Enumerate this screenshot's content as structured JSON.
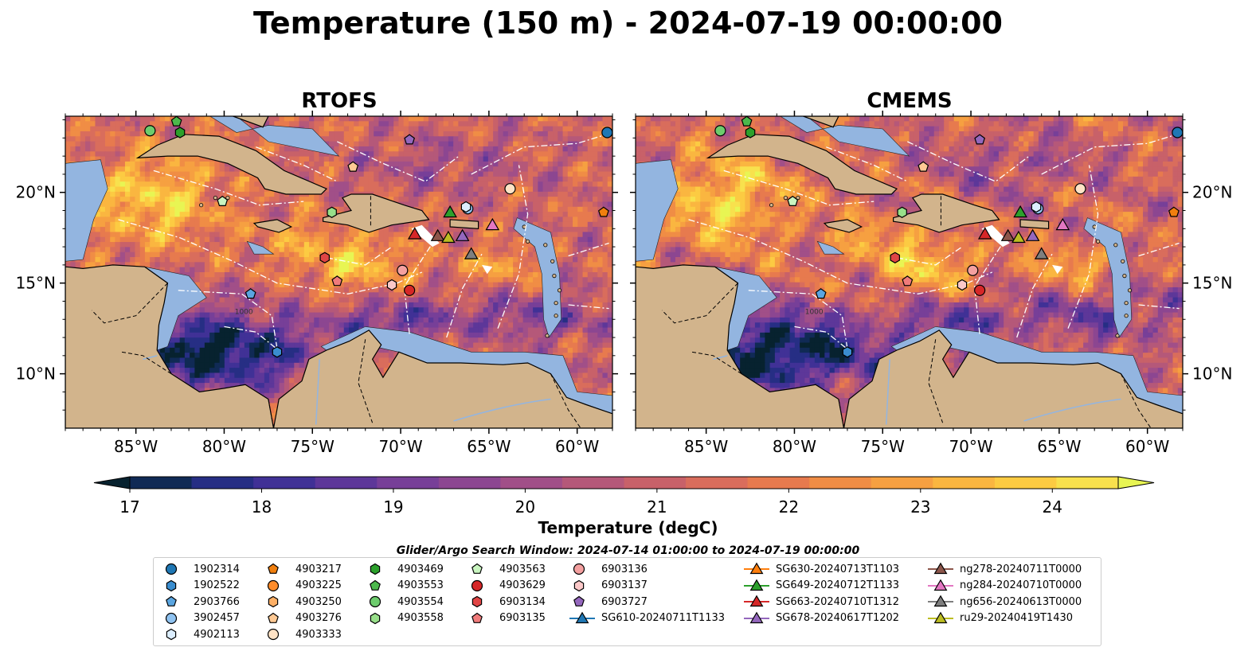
{
  "title": "Temperature (150 m) - 2024-07-19 00:00:00",
  "panels": [
    "RTOFS",
    "CMEMS"
  ],
  "colorbar": {
    "label": "Temperature (degC)",
    "ticks": [
      "17",
      "18",
      "19",
      "20",
      "21",
      "22",
      "23",
      "24"
    ],
    "range": [
      17,
      24.5
    ],
    "colors": [
      "#07222f",
      "#102a55",
      "#262e84",
      "#403196",
      "#5d3799",
      "#773f98",
      "#8c4691",
      "#a14f88",
      "#b55879",
      "#c86169",
      "#d96d5c",
      "#e77a4e",
      "#f08d45",
      "#f6a041",
      "#fab640",
      "#fccb42",
      "#f8e14d",
      "#e8f553"
    ]
  },
  "map": {
    "lon_labels": [
      "85°W",
      "80°W",
      "75°W",
      "70°W",
      "65°W",
      "60°W"
    ],
    "lat_labels": [
      "20°N",
      "15°N",
      "10°N"
    ],
    "contour_label": "1000",
    "land_color": "#d2b48c",
    "shelf_color": "#93b5e0"
  },
  "search_window": "Glider/Argo Search Window: 2024-07-14 01:00:00 to 2024-07-19 00:00:00",
  "legend": [
    {
      "label": "1902314",
      "marker": "circle",
      "color": "#1f77b4"
    },
    {
      "label": "1902522",
      "marker": "hexagon",
      "color": "#3a8dcf"
    },
    {
      "label": "2903766",
      "marker": "pentagon",
      "color": "#5aa5e0"
    },
    {
      "label": "3902457",
      "marker": "circle",
      "color": "#8fc2f0"
    },
    {
      "label": "4902113",
      "marker": "hexagon",
      "color": "#dceeff"
    },
    {
      "label": "4903217",
      "marker": "pentagon",
      "color": "#f07f0e"
    },
    {
      "label": "4903225",
      "marker": "circle",
      "color": "#ff8c2a"
    },
    {
      "label": "4903250",
      "marker": "hexagon",
      "color": "#ffb066"
    },
    {
      "label": "4903276",
      "marker": "pentagon",
      "color": "#ffc994"
    },
    {
      "label": "4903333",
      "marker": "circle",
      "color": "#ffe3c6"
    },
    {
      "label": "4903469",
      "marker": "hexagon",
      "color": "#2ca02c"
    },
    {
      "label": "4903553",
      "marker": "pentagon",
      "color": "#4cb84c"
    },
    {
      "label": "4903554",
      "marker": "circle",
      "color": "#6dcc6d"
    },
    {
      "label": "4903558",
      "marker": "hexagon",
      "color": "#98df8a"
    },
    {
      "label": "4903563",
      "marker": "pentagon",
      "color": "#c9f5c0"
    },
    {
      "label": "4903629",
      "marker": "circle",
      "color": "#d62728"
    },
    {
      "label": "6903134",
      "marker": "hexagon",
      "color": "#e04545"
    },
    {
      "label": "6903135",
      "marker": "pentagon",
      "color": "#f07b7b"
    },
    {
      "label": "6903136",
      "marker": "circle",
      "color": "#f4a0a0"
    },
    {
      "label": "6903137",
      "marker": "hexagon",
      "color": "#fbc8c8"
    },
    {
      "label": "6903727",
      "marker": "pentagon",
      "color": "#9467bd"
    },
    {
      "label": "SG610-20240711T1133",
      "marker": "triangle",
      "color": "#1f77b4"
    },
    {
      "label": "SG630-20240713T1103",
      "marker": "triangle",
      "color": "#ff7f0e"
    },
    {
      "label": "SG649-20240712T1133",
      "marker": "triangle",
      "color": "#2ca02c"
    },
    {
      "label": "SG663-20240710T1312",
      "marker": "triangle",
      "color": "#d62728"
    },
    {
      "label": "SG678-20240617T1202",
      "marker": "triangle",
      "color": "#9467bd"
    },
    {
      "label": "ng278-20240711T0000",
      "marker": "triangle",
      "color": "#8c564b"
    },
    {
      "label": "ng284-20240710T0000",
      "marker": "triangle",
      "color": "#e377c2"
    },
    {
      "label": "ng656-20240613T0000",
      "marker": "triangle",
      "color": "#7f7f7f"
    },
    {
      "label": "ru29-20240419T1430",
      "marker": "triangle",
      "color": "#bcbd22"
    }
  ],
  "chart_data": {
    "type": "heatmap",
    "title": "Temperature (150 m) - 2024-07-19 00:00:00",
    "subplots": [
      "RTOFS",
      "CMEMS"
    ],
    "xlim": [
      -89,
      -58
    ],
    "ylim": [
      7,
      24.2
    ],
    "x_ticks": [
      -85,
      -80,
      -75,
      -70,
      -65,
      -60
    ],
    "y_ticks": [
      20,
      15,
      10
    ],
    "colorbar_range": [
      17,
      24.5
    ],
    "colorbar_label": "Temperature (degC)",
    "observations": [
      {
        "id": "1902314",
        "lon": -58.3,
        "lat": 23.3
      },
      {
        "id": "1902522",
        "lon": -77.0,
        "lat": 11.2
      },
      {
        "id": "2903766",
        "lon": -78.5,
        "lat": 14.4
      },
      {
        "id": "3902457",
        "lon": -66.2,
        "lat": 19.1
      },
      {
        "id": "4902113",
        "lon": -66.3,
        "lat": 19.2
      },
      {
        "id": "4903217",
        "lon": -58.5,
        "lat": 18.9
      },
      {
        "id": "4903276",
        "lon": -72.7,
        "lat": 21.4
      },
      {
        "id": "4903333",
        "lon": -63.8,
        "lat": 20.2
      },
      {
        "id": "4903469",
        "lon": -82.5,
        "lat": 23.3
      },
      {
        "id": "4903553",
        "lon": -82.7,
        "lat": 23.9
      },
      {
        "id": "4903554",
        "lon": -84.2,
        "lat": 23.4
      },
      {
        "id": "4903558",
        "lon": -73.9,
        "lat": 18.9
      },
      {
        "id": "4903563",
        "lon": -80.1,
        "lat": 19.5
      },
      {
        "id": "4903629",
        "lon": -69.5,
        "lat": 14.6
      },
      {
        "id": "6903134",
        "lon": -74.3,
        "lat": 16.4
      },
      {
        "id": "6903135",
        "lon": -73.6,
        "lat": 15.1
      },
      {
        "id": "6903136",
        "lon": -69.9,
        "lat": 15.7
      },
      {
        "id": "6903137",
        "lon": -70.5,
        "lat": 14.9
      },
      {
        "id": "6903727",
        "lon": -69.5,
        "lat": 22.9
      },
      {
        "id": "SG649-20240712T1133",
        "lon": -67.2,
        "lat": 18.9
      },
      {
        "id": "SG663-20240710T1312",
        "lon": -69.2,
        "lat": 17.7
      },
      {
        "id": "SG678-20240617T1202",
        "lon": -66.5,
        "lat": 17.6
      },
      {
        "id": "ng278-20240711T0000",
        "lon": -67.9,
        "lat": 17.6
      },
      {
        "id": "ng284-20240710T0000",
        "lon": -64.8,
        "lat": 18.2
      },
      {
        "id": "ng656-20240613T0000",
        "lon": -66.0,
        "lat": 16.6
      },
      {
        "id": "ru29-20240419T1430",
        "lon": -67.3,
        "lat": 17.5
      }
    ]
  }
}
